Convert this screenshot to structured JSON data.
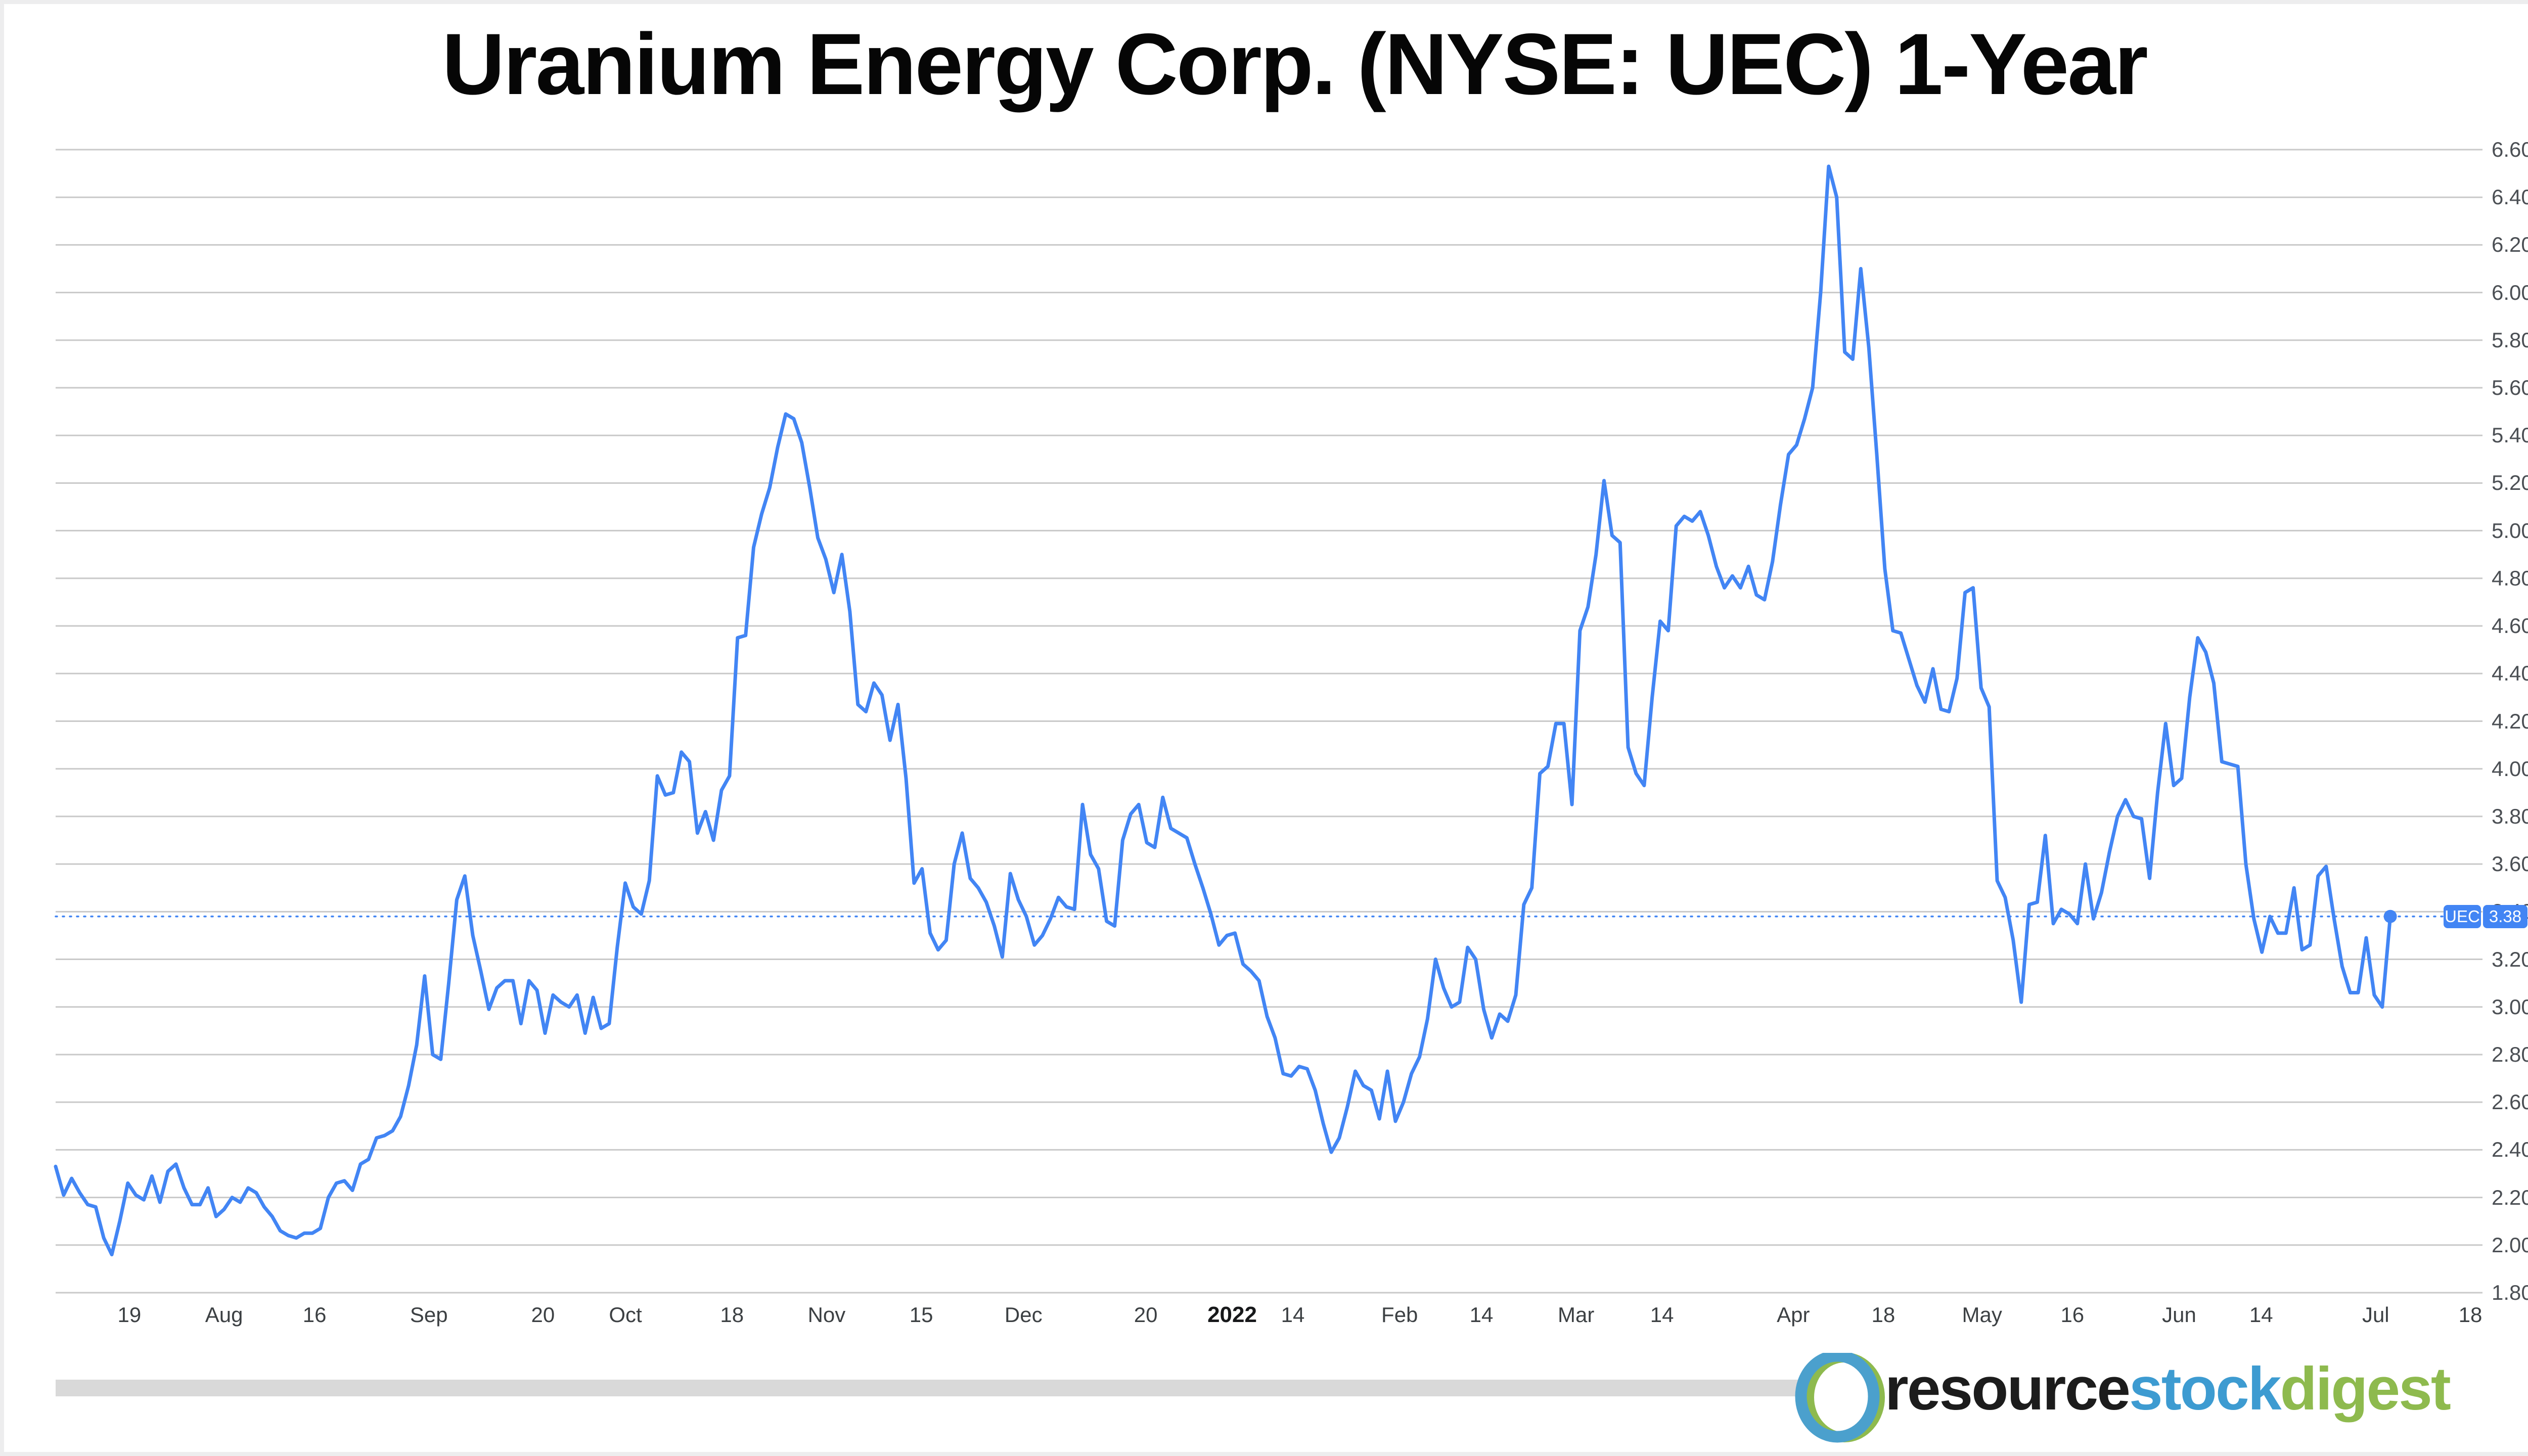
{
  "title": "Uranium Energy Corp. (NYSE: UEC) 1-Year",
  "ticker_badge": {
    "ticker": "UEC",
    "price": "3.38"
  },
  "logo": {
    "part1": "resource",
    "part2": "stock",
    "part3": "digest"
  },
  "colors": {
    "line": "#4285f4",
    "badge": "#4285f4",
    "gridline": "#c9c9c9",
    "logo_blue": "#4ba0cd",
    "logo_green": "#8eba4e"
  },
  "chart_data": {
    "type": "line",
    "title": "Uranium Energy Corp. (NYSE: UEC) 1-Year",
    "xlabel": "",
    "ylabel": "",
    "grid": "horizontal",
    "legend_position": "none",
    "series_name": "UEC",
    "last_price": 3.38,
    "end_frac": 0.962,
    "y_axis": {
      "min": 1.8,
      "max": 6.6,
      "step": 0.2
    },
    "x_ticks": [
      {
        "label": "19",
        "f": 0.0304
      },
      {
        "label": "Aug",
        "f": 0.0694
      },
      {
        "label": "16",
        "f": 0.1067
      },
      {
        "label": "Sep",
        "f": 0.1538
      },
      {
        "label": "20",
        "f": 0.2008
      },
      {
        "label": "Oct",
        "f": 0.2348
      },
      {
        "label": "18",
        "f": 0.2787
      },
      {
        "label": "Nov",
        "f": 0.3177
      },
      {
        "label": "15",
        "f": 0.3567
      },
      {
        "label": "Dec",
        "f": 0.3988
      },
      {
        "label": "20",
        "f": 0.4492
      },
      {
        "label": "2022",
        "f": 0.4848,
        "bold": true
      },
      {
        "label": "14",
        "f": 0.5098
      },
      {
        "label": "Feb",
        "f": 0.5538
      },
      {
        "label": "14",
        "f": 0.5875
      },
      {
        "label": "Mar",
        "f": 0.6265
      },
      {
        "label": "14",
        "f": 0.6619
      },
      {
        "label": "Apr",
        "f": 0.716
      },
      {
        "label": "18",
        "f": 0.7531
      },
      {
        "label": "May",
        "f": 0.7938
      },
      {
        "label": "16",
        "f": 0.831
      },
      {
        "label": "Jun",
        "f": 0.875
      },
      {
        "label": "14",
        "f": 0.9088
      },
      {
        "label": "Jul",
        "f": 0.956
      },
      {
        "label": "18",
        "f": 0.995
      }
    ],
    "values": [
      2.33,
      2.21,
      2.28,
      2.22,
      2.17,
      2.16,
      2.03,
      1.96,
      2.1,
      2.26,
      2.21,
      2.19,
      2.29,
      2.18,
      2.31,
      2.34,
      2.24,
      2.17,
      2.17,
      2.24,
      2.12,
      2.15,
      2.2,
      2.18,
      2.24,
      2.22,
      2.16,
      2.12,
      2.06,
      2.04,
      2.03,
      2.05,
      2.05,
      2.07,
      2.2,
      2.26,
      2.27,
      2.23,
      2.34,
      2.36,
      2.45,
      2.46,
      2.48,
      2.54,
      2.67,
      2.84,
      3.13,
      2.8,
      2.78,
      3.1,
      3.45,
      3.55,
      3.3,
      3.15,
      2.99,
      3.08,
      3.11,
      3.11,
      2.93,
      3.11,
      3.07,
      2.89,
      3.05,
      3.02,
      3.0,
      3.05,
      2.89,
      3.04,
      2.91,
      2.93,
      3.25,
      3.52,
      3.42,
      3.39,
      3.53,
      3.97,
      3.89,
      3.9,
      4.07,
      4.03,
      3.73,
      3.82,
      3.7,
      3.91,
      3.97,
      4.55,
      4.56,
      4.93,
      5.07,
      5.18,
      5.35,
      5.49,
      5.47,
      5.37,
      5.18,
      4.97,
      4.88,
      4.74,
      4.9,
      4.66,
      4.27,
      4.24,
      4.36,
      4.31,
      4.12,
      4.27,
      3.96,
      3.52,
      3.58,
      3.31,
      3.24,
      3.28,
      3.6,
      3.73,
      3.54,
      3.5,
      3.44,
      3.34,
      3.21,
      3.56,
      3.45,
      3.38,
      3.26,
      3.3,
      3.37,
      3.46,
      3.42,
      3.41,
      3.85,
      3.64,
      3.58,
      3.36,
      3.34,
      3.7,
      3.81,
      3.85,
      3.69,
      3.67,
      3.88,
      3.75,
      3.73,
      3.71,
      3.6,
      3.5,
      3.39,
      3.26,
      3.3,
      3.31,
      3.18,
      3.15,
      3.11,
      2.96,
      2.87,
      2.72,
      2.71,
      2.75,
      2.74,
      2.65,
      2.51,
      2.39,
      2.45,
      2.58,
      2.73,
      2.67,
      2.65,
      2.53,
      2.73,
      2.52,
      2.6,
      2.72,
      2.79,
      2.95,
      3.2,
      3.08,
      3.0,
      3.02,
      3.25,
      3.2,
      2.99,
      2.87,
      2.97,
      2.94,
      3.05,
      3.43,
      3.5,
      3.98,
      4.01,
      4.19,
      4.19,
      3.85,
      4.58,
      4.68,
      4.9,
      5.21,
      4.98,
      4.95,
      4.09,
      3.98,
      3.93,
      4.3,
      4.62,
      4.58,
      5.02,
      5.06,
      5.04,
      5.08,
      4.98,
      4.85,
      4.76,
      4.81,
      4.76,
      4.85,
      4.73,
      4.71,
      4.87,
      5.11,
      5.32,
      5.36,
      5.47,
      5.6,
      6.0,
      6.53,
      6.4,
      5.75,
      5.72,
      6.1,
      5.77,
      5.32,
      4.84,
      4.58,
      4.57,
      4.46,
      4.35,
      4.28,
      4.42,
      4.25,
      4.24,
      4.38,
      4.74,
      4.76,
      4.34,
      4.26,
      3.53,
      3.46,
      3.28,
      3.02,
      3.43,
      3.44,
      3.72,
      3.35,
      3.41,
      3.39,
      3.35,
      3.6,
      3.37,
      3.48,
      3.65,
      3.8,
      3.87,
      3.8,
      3.79,
      3.54,
      3.9,
      4.19,
      3.93,
      3.96,
      4.3,
      4.55,
      4.49,
      4.36,
      4.03,
      4.02,
      4.01,
      3.6,
      3.37,
      3.23,
      3.38,
      3.31,
      3.31,
      3.5,
      3.24,
      3.26,
      3.55,
      3.59,
      3.37,
      3.17,
      3.06,
      3.06,
      3.29,
      3.05,
      3.0,
      3.38
    ]
  }
}
